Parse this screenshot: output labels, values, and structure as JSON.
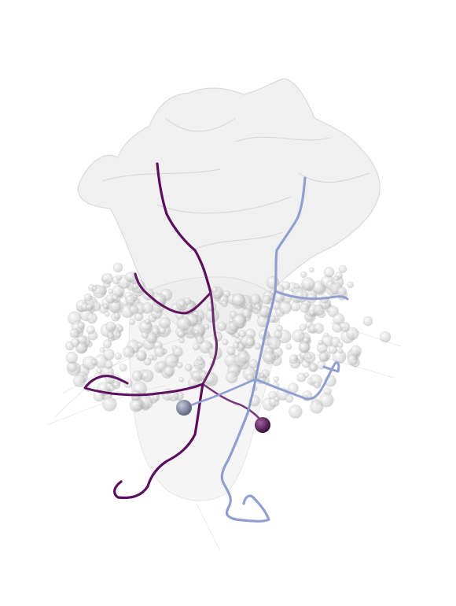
{
  "scene": {
    "background_color": "#ffffff",
    "mesh_color": "#d9d9d9",
    "sphere_color": "#cfcfcf",
    "neuron_a_color": "#5a0f5e",
    "neuron_a_mid_color": "#7a3a7e",
    "neuron_b_color": "#8f9fd0",
    "soma_a_color": "#3c1040",
    "soma_b_color": "#8a90a8"
  },
  "icons": {
    "soma_a": "sphere-icon",
    "soma_b": "sphere-icon"
  }
}
